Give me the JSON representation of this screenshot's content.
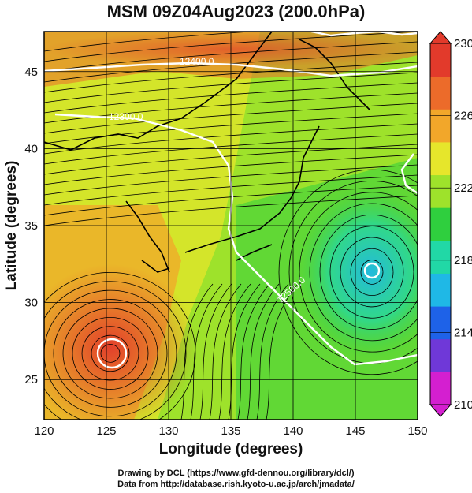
{
  "title": "MSM 09Z04Aug2023 (200.0hPa)",
  "chart_data": {
    "type": "map",
    "xlabel": "Longitude (degrees)",
    "ylabel": "Latitude (degrees)",
    "xlim": [
      120,
      150
    ],
    "ylim": [
      22.4,
      47.6
    ],
    "x_ticks": [
      120,
      125,
      130,
      135,
      140,
      145,
      150
    ],
    "y_ticks": [
      25,
      30,
      35,
      40,
      45
    ],
    "grid": true,
    "field": "temperature shading with streamlines",
    "colorbar": {
      "min": 210,
      "max": 230,
      "ticks": [
        210,
        214,
        218,
        222,
        226,
        230
      ],
      "colors": [
        "#d41fd0",
        "#6f38d8",
        "#1e62e8",
        "#1fb8e6",
        "#21d8a6",
        "#2fcf3e",
        "#9ee22b",
        "#e6e62b",
        "#f2a72a",
        "#ec6b2a",
        "#e23a2b"
      ]
    },
    "contour_labels": [
      "12400.0",
      "12300.0",
      "12500.0"
    ],
    "features": [
      {
        "type": "anticyclone/cyclone center",
        "lon": 125.8,
        "lat": 27.3
      },
      {
        "type": "center",
        "lon": 146.6,
        "lat": 32.8
      }
    ]
  },
  "footer": {
    "line1": "Drawing by DCL (https://www.gfd-dennou.org/library/dcl/)",
    "line2": "Data from http://database.rish.kyoto-u.ac.jp/arch/jmadata/"
  }
}
